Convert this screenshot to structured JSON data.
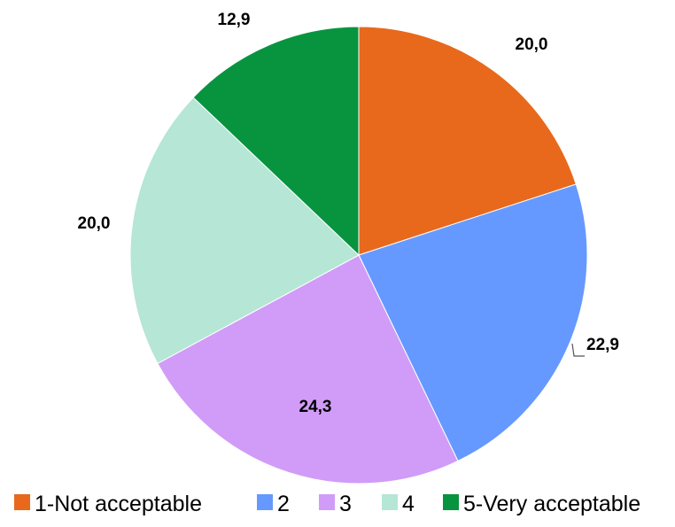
{
  "chart_data": {
    "type": "pie",
    "categories": [
      "1-Not acceptable",
      "2",
      "3",
      "4",
      "5-Very acceptable"
    ],
    "values": [
      20.0,
      22.9,
      24.3,
      20.0,
      12.9
    ],
    "data_labels": [
      "20,0",
      "22,9",
      "24,3",
      "20,0",
      "12,9"
    ],
    "colors": [
      "#E8691C",
      "#6699FF",
      "#D09CF8",
      "#B5E6D6",
      "#08943F"
    ],
    "start_angle": "12 o'clock",
    "direction": "clockwise",
    "legend": {
      "position": "bottom",
      "entries": [
        "1-Not acceptable",
        "2",
        "3",
        "4",
        "5-Very acceptable"
      ]
    }
  }
}
